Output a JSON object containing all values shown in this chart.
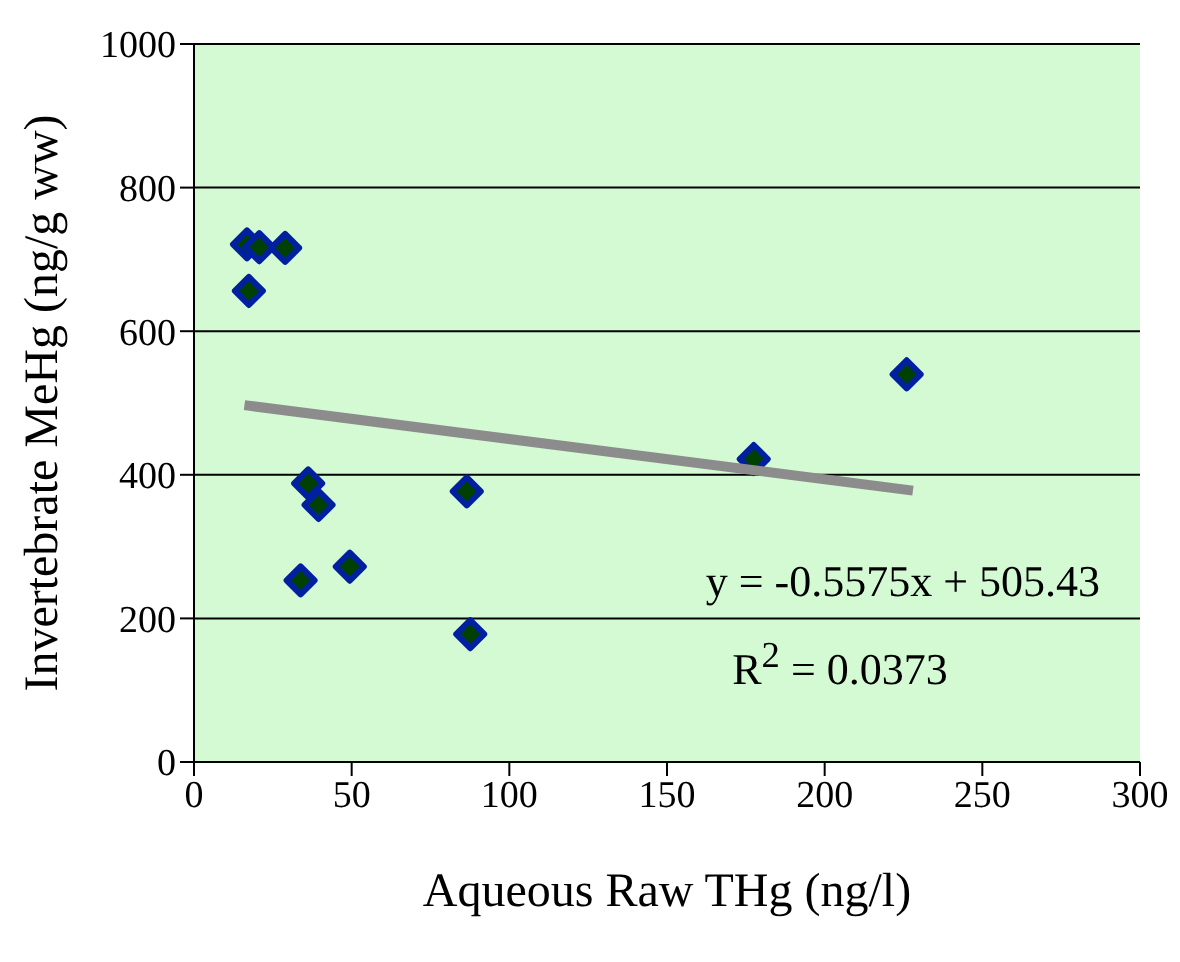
{
  "chart_data": {
    "type": "scatter",
    "xlabel": "Aqueous Raw THg (ng/l)",
    "ylabel": "Invertebrate MeHg (ng/g ww)",
    "xlim": [
      0,
      300
    ],
    "xticks": [
      0,
      50,
      100,
      150,
      200,
      250,
      300
    ],
    "ylim": [
      0,
      1000
    ],
    "yticks": [
      0,
      200,
      400,
      600,
      800,
      1000
    ],
    "grid": "y",
    "legend": false,
    "marker": "diamond",
    "series": [
      {
        "color": "#0020a0",
        "x": [
          16.8,
          20.7,
          28.9,
          17.4,
          36.2,
          39.5,
          33.8,
          49.4,
          86.5,
          87.6,
          177.5,
          226
        ],
        "values": [
          721,
          717,
          716,
          656,
          388,
          358,
          253,
          272,
          377,
          178,
          422,
          540
        ]
      },
      {
        "type": "line",
        "color": "#8c8c8c",
        "x": [
          16,
          228
        ],
        "values": [
          497,
          378
        ],
        "marker": "none"
      }
    ],
    "annotations": [
      "y = -0.5575x + 505.43",
      "R$^{2}$ = 0.0373"
    ]
  }
}
